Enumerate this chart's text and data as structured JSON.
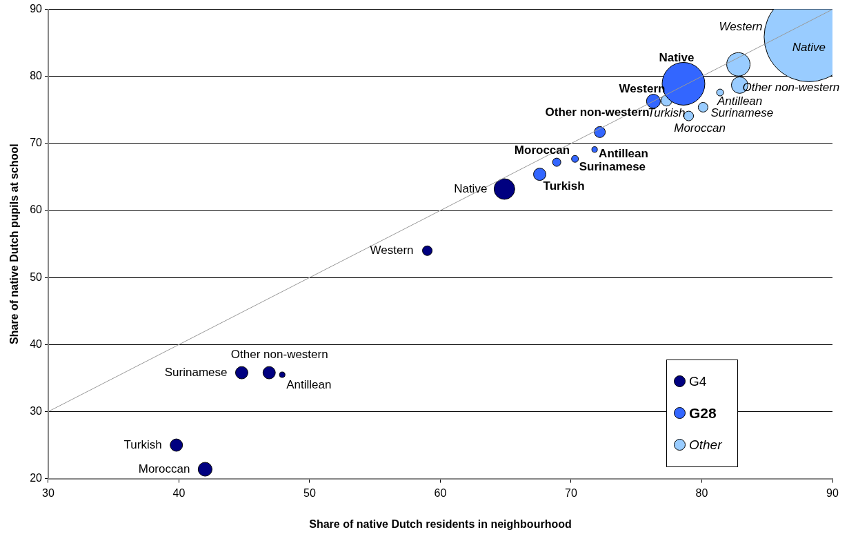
{
  "chart_data": {
    "type": "bubble",
    "xlabel": "Share of native Dutch residents in neighbourhood",
    "ylabel": "Share of native Dutch pupils at school",
    "xlim": [
      30,
      90
    ],
    "xticks": [
      30,
      40,
      50,
      60,
      70,
      80,
      90
    ],
    "ylim": [
      20,
      90
    ],
    "yticks": [
      20,
      30,
      40,
      50,
      60,
      70,
      80,
      90
    ],
    "grid": "y",
    "legend": "bottom right",
    "marker": "circle",
    "series": [
      {
        "name": "G4",
        "color": "#000080",
        "x": [
          64.9,
          59.0,
          44.8,
          46.9,
          47.9,
          39.8,
          42.0
        ],
        "values": [
          63.2,
          54.0,
          35.8,
          35.8,
          35.5,
          25.0,
          21.4
        ],
        "sizes": [
          0.053,
          0.0116,
          0.019,
          0.019,
          0.0038,
          0.019,
          0.024
        ]
      },
      {
        "name": "G28",
        "color": "#3366ff",
        "x": [
          78.6,
          76.3,
          72.2,
          71.8,
          70.3,
          68.9,
          67.6
        ],
        "values": [
          78.9,
          76.3,
          71.7,
          69.1,
          67.7,
          67.2,
          65.4
        ],
        "sizes": [
          0.227,
          0.024,
          0.015,
          0.0038,
          0.0059,
          0.0085,
          0.019
        ]
      },
      {
        "name": "Other",
        "color": "#99ccff",
        "x": [
          88.2,
          82.8,
          82.9,
          81.4,
          77.3,
          80.1,
          79.0
        ],
        "values": [
          85.9,
          81.8,
          78.7,
          77.6,
          76.4,
          75.4,
          74.1
        ],
        "sizes": [
          1,
          0.068,
          0.034,
          0.0059,
          0.015,
          0.0116,
          0.0116
        ]
      },
      {
        "type": "line",
        "marker": "none",
        "color": "#999999",
        "x": [
          30,
          90
        ],
        "values": [
          30,
          90
        ]
      }
    ],
    "annotations": [
      {
        "text": "Native",
        "x": 64.9,
        "y": 63.2
      },
      {
        "text": "Western",
        "x": 59.0,
        "y": 54.0
      },
      {
        "text": "Surinamese",
        "x": 44.8,
        "y": 35.8
      },
      {
        "text": "Other non-western",
        "x": 46.9,
        "y": 35.8
      },
      {
        "text": "Antillean",
        "x": 47.9,
        "y": 35.5
      },
      {
        "text": "Turkish",
        "x": 39.8,
        "y": 25.0
      },
      {
        "text": "Moroccan",
        "x": 42.0,
        "y": 21.4
      },
      {
        "text": "Native",
        "x": 78.6,
        "y": 78.9
      },
      {
        "text": "Western",
        "x": 76.3,
        "y": 76.3
      },
      {
        "text": "Other non-western",
        "x": 72.2,
        "y": 71.7
      },
      {
        "text": "Antillean",
        "x": 71.8,
        "y": 69.1
      },
      {
        "text": "Surinamese",
        "x": 70.3,
        "y": 67.7
      },
      {
        "text": "Moroccan",
        "x": 68.9,
        "y": 67.2
      },
      {
        "text": "Turkish",
        "x": 67.6,
        "y": 65.4
      },
      {
        "text": "Native",
        "x": 88.2,
        "y": 85.9
      },
      {
        "text": "Western",
        "x": 82.8,
        "y": 81.8
      },
      {
        "text": "Other non-western",
        "x": 82.9,
        "y": 78.7
      },
      {
        "text": "Antillean",
        "x": 81.4,
        "y": 77.6
      },
      {
        "text": "Turkish",
        "x": 77.3,
        "y": 76.4
      },
      {
        "text": "Surinamese",
        "x": 80.1,
        "y": 75.4
      },
      {
        "text": "Moroccan",
        "x": 79.0,
        "y": 74.1
      }
    ]
  }
}
